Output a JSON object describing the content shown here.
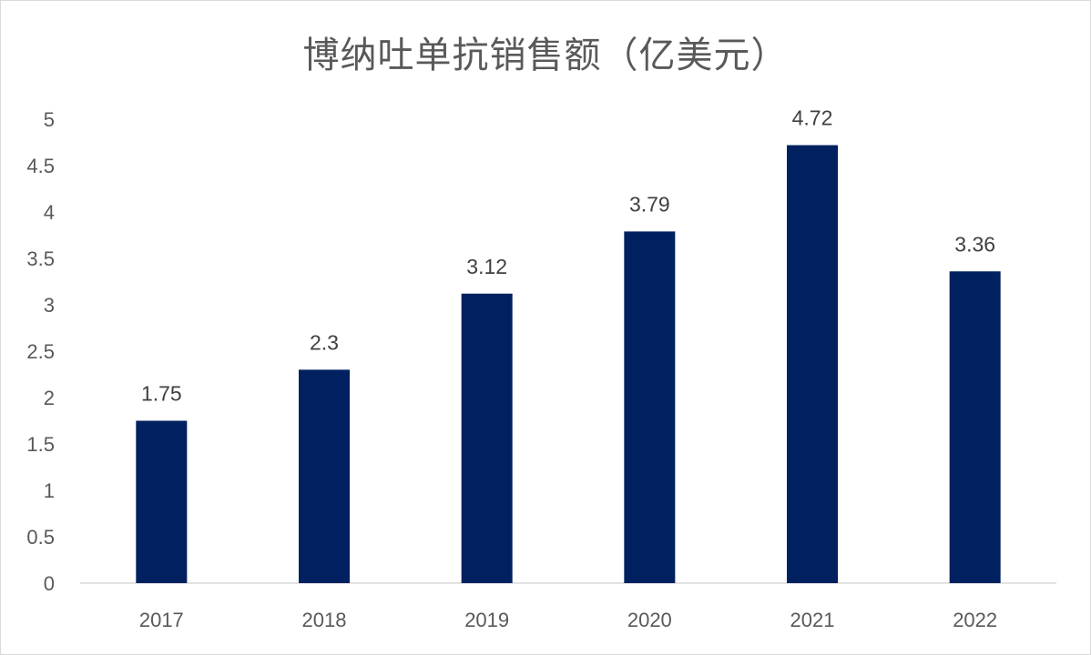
{
  "chart_data": {
    "type": "bar",
    "title": "博纳吐单抗销售额（亿美元）",
    "categories": [
      "2017",
      "2018",
      "2019",
      "2020",
      "2021",
      "2022"
    ],
    "values": [
      1.75,
      2.3,
      3.12,
      3.79,
      4.72,
      3.36
    ],
    "data_labels": [
      "1.75",
      "2.3",
      "3.12",
      "3.79",
      "4.72",
      "3.36"
    ],
    "y_ticks": [
      "0",
      "0.5",
      "1",
      "1.5",
      "2",
      "2.5",
      "3",
      "3.5",
      "4",
      "4.5",
      "5"
    ],
    "ylim": [
      0,
      5
    ],
    "xlabel": "",
    "ylabel": "",
    "grid": false,
    "legend": "none",
    "bar_color": "#002060",
    "axis_color": "#d9d9d9"
  }
}
